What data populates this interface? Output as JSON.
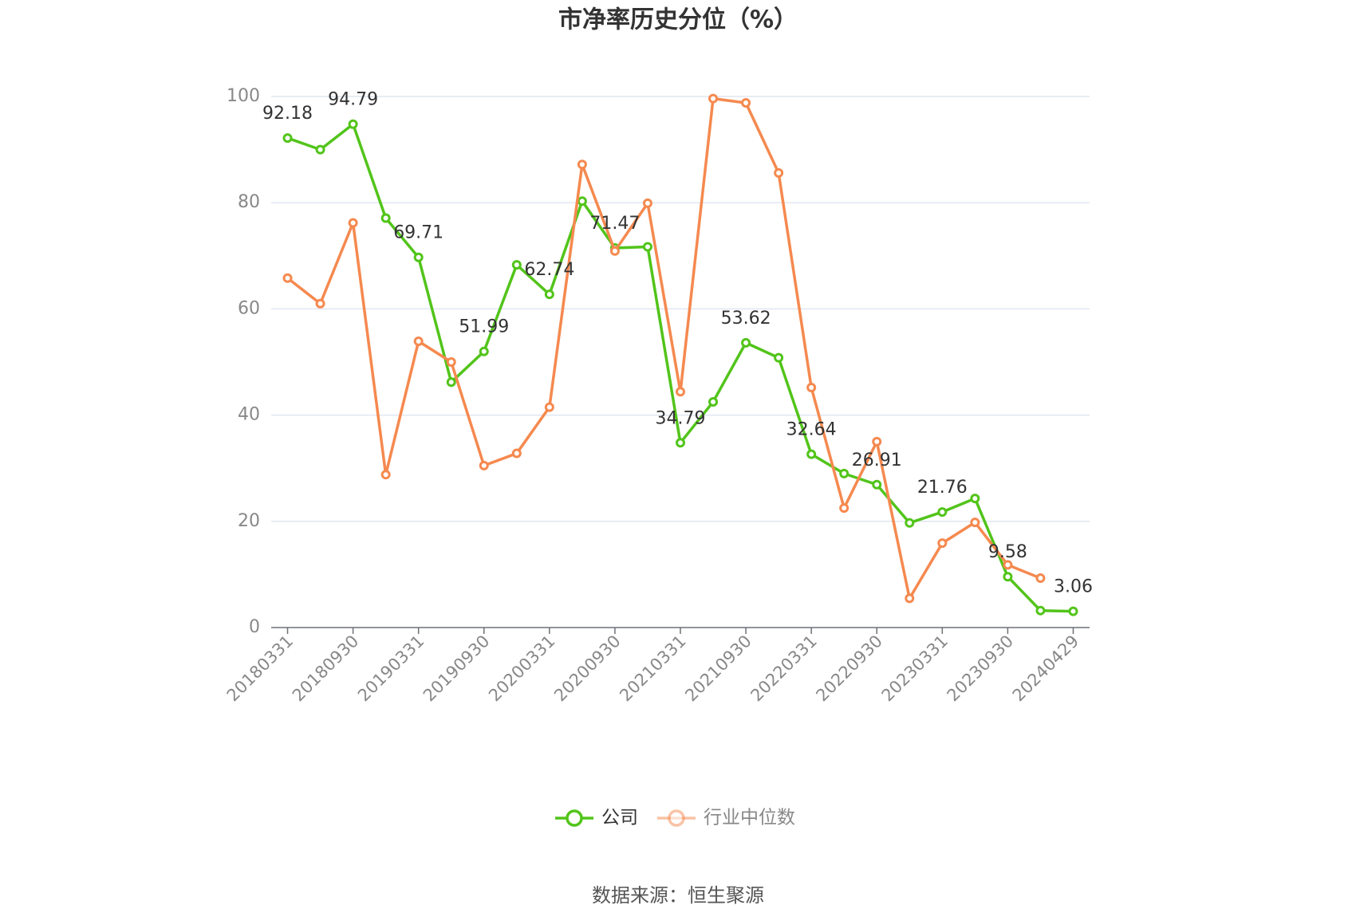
{
  "chart_data": {
    "type": "line",
    "title": "市净率历史分位（%）",
    "source": "数据来源：恒生聚源",
    "categories": [
      "20180331",
      null,
      "20180930",
      null,
      "20190331",
      null,
      "20190930",
      null,
      "20200331",
      null,
      "20200930",
      null,
      "20210331",
      null,
      "20210930",
      null,
      "20220331",
      null,
      "20220930",
      null,
      "20230331",
      null,
      "20230930",
      null,
      "20240429"
    ],
    "series": [
      {
        "name": "公司",
        "color": "#52c41a",
        "values": [
          92.18,
          90.0,
          94.79,
          77.1,
          69.71,
          46.2,
          51.99,
          68.3,
          62.74,
          80.3,
          71.47,
          71.7,
          34.79,
          42.5,
          53.62,
          50.8,
          32.64,
          29.0,
          26.91,
          19.7,
          21.76,
          24.3,
          9.58,
          3.2,
          3.06
        ]
      },
      {
        "name": "行业中位数",
        "color": "#f5894f",
        "values": [
          65.8,
          61.0,
          76.2,
          28.8,
          53.9,
          50.0,
          30.5,
          32.8,
          41.5,
          87.2,
          70.9,
          79.9,
          44.4,
          99.6,
          98.8,
          85.6,
          45.2,
          22.5,
          35.0,
          5.5,
          15.9,
          19.8,
          11.8,
          9.3,
          null
        ]
      }
    ],
    "ylim": [
      0,
      100
    ],
    "yticks": [
      0,
      20,
      40,
      60,
      80,
      100
    ],
    "grid": true,
    "legend": "bottom"
  }
}
